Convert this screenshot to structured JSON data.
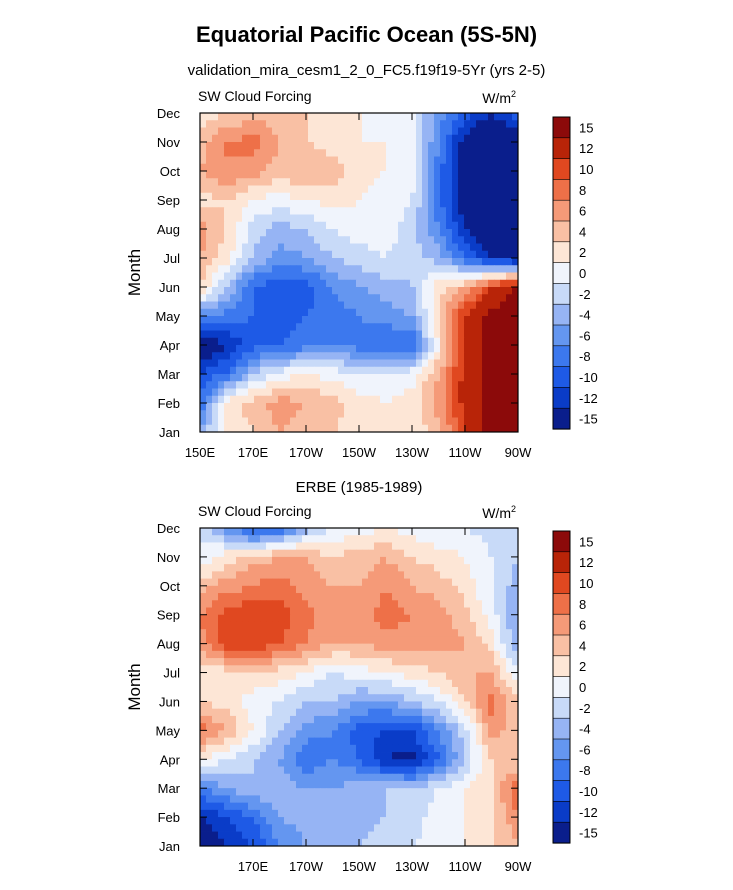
{
  "figure": {
    "title": "Equatorial Pacific Ocean (5S-5N)",
    "subtitle": "validation_mira_cesm1_2_0_FC5.f19f19-5Yr (yrs 2-5)"
  },
  "chart_data": [
    {
      "type": "heatmap",
      "panel_title": "",
      "left_label": "SW Cloud Forcing",
      "units_base": "W/m",
      "units_sup": "2",
      "ylabel": "Month",
      "xlabel": "",
      "months": [
        "Jan",
        "Feb",
        "Mar",
        "Apr",
        "May",
        "Jun",
        "Jul",
        "Aug",
        "Sep",
        "Oct",
        "Nov",
        "Dec"
      ],
      "xticks": [
        "150E",
        "170E",
        "170W",
        "150W",
        "130W",
        "110W",
        "90W"
      ],
      "x": [
        "150E",
        "160E",
        "170E",
        "180",
        "170W",
        "160W",
        "150W",
        "140W",
        "130W",
        "120W",
        "110W",
        "100W",
        "90W"
      ],
      "colorbar": [
        "15",
        "12",
        "10",
        "8",
        "6",
        "4",
        "2",
        "0",
        "-2",
        "-4",
        "-6",
        "-8",
        "-10",
        "-12",
        "-15"
      ],
      "values": [
        [
          -3,
          2,
          4,
          6,
          5,
          4,
          3,
          2,
          2,
          5,
          12,
          16,
          16
        ],
        [
          -8,
          3,
          5,
          7,
          6,
          5,
          3,
          2,
          3,
          7,
          13,
          16,
          16
        ],
        [
          -10,
          -8,
          -2,
          1,
          2,
          1,
          0,
          0,
          1,
          6,
          13,
          16,
          16
        ],
        [
          -15,
          -12,
          -9,
          -8,
          -7,
          -6,
          -7,
          -8,
          -8,
          2,
          13,
          16,
          16
        ],
        [
          -5,
          -7,
          -8,
          -9,
          -8,
          -7,
          -6,
          -5,
          -4,
          4,
          12,
          16,
          16
        ],
        [
          4,
          -2,
          -8,
          -9,
          -9,
          -6,
          -4,
          -3,
          -2,
          3,
          6,
          12,
          16
        ],
        [
          6,
          3,
          -2,
          -5,
          -4,
          -2,
          -1,
          0,
          -1,
          -3,
          -8,
          -12,
          -14
        ],
        [
          7,
          4,
          -1,
          -3,
          -2,
          0,
          1,
          1,
          -1,
          -6,
          -12,
          -16,
          -16
        ],
        [
          3,
          4,
          2,
          1,
          2,
          3,
          2,
          1,
          0,
          -7,
          -14,
          -16,
          -16
        ],
        [
          6,
          8,
          7,
          5,
          6,
          5,
          3,
          2,
          1,
          -7,
          -14,
          -16,
          -16
        ],
        [
          5,
          8,
          9,
          6,
          4,
          3,
          2,
          2,
          1,
          -6,
          -13,
          -16,
          -16
        ],
        [
          3,
          4,
          5,
          5,
          4,
          3,
          2,
          1,
          1,
          -5,
          -9,
          -12,
          -8
        ]
      ]
    },
    {
      "type": "heatmap",
      "panel_title": "ERBE (1985-1989)",
      "left_label": "SW Cloud Forcing",
      "units_base": "W/m",
      "units_sup": "2",
      "ylabel": "Month",
      "xlabel": "",
      "months": [
        "Jan",
        "Feb",
        "Mar",
        "Apr",
        "May",
        "Jun",
        "Jul",
        "Aug",
        "Sep",
        "Oct",
        "Nov",
        "Dec"
      ],
      "xticks": [
        "170E",
        "170W",
        "150W",
        "130W",
        "110W",
        "90W"
      ],
      "x": [
        "150E",
        "160E",
        "170E",
        "180",
        "170W",
        "160W",
        "150W",
        "140W",
        "130W",
        "120W",
        "110W",
        "100W",
        "90W"
      ],
      "colorbar": [
        "15",
        "12",
        "10",
        "8",
        "6",
        "4",
        "2",
        "0",
        "-2",
        "-4",
        "-6",
        "-8",
        "-10",
        "-12",
        "-15"
      ],
      "values": [
        [
          -14,
          -12,
          -10,
          -6,
          -4,
          -2,
          -2,
          -1,
          0,
          1,
          2,
          4,
          6
        ],
        [
          -12,
          -10,
          -8,
          -4,
          -3,
          -2,
          -3,
          -2,
          -1,
          1,
          2,
          3,
          8
        ],
        [
          -6,
          -4,
          -2,
          -3,
          -4,
          -4,
          -3,
          -2,
          -2,
          0,
          2,
          4,
          10
        ],
        [
          2,
          0,
          -2,
          -4,
          -8,
          -6,
          -8,
          -12,
          -13,
          -8,
          -2,
          4,
          4
        ],
        [
          9,
          6,
          2,
          -2,
          -5,
          -6,
          -9,
          -10,
          -10,
          -6,
          -1,
          7,
          5
        ],
        [
          4,
          3,
          1,
          0,
          -2,
          -2,
          -4,
          -4,
          -2,
          0,
          4,
          9,
          4
        ],
        [
          2,
          3,
          4,
          3,
          2,
          0,
          1,
          2,
          3,
          4,
          6,
          6,
          0
        ],
        [
          7,
          11,
          12,
          10,
          8,
          6,
          6,
          7,
          7,
          7,
          6,
          3,
          -4
        ],
        [
          8,
          11,
          12,
          11,
          9,
          6,
          7,
          9,
          8,
          7,
          5,
          1,
          -4
        ],
        [
          5,
          7,
          8,
          9,
          7,
          6,
          6,
          8,
          6,
          5,
          3,
          0,
          -3
        ],
        [
          0,
          3,
          5,
          6,
          6,
          4,
          5,
          6,
          4,
          3,
          2,
          0,
          -2
        ],
        [
          0,
          -5,
          -10,
          -8,
          -3,
          0,
          1,
          2,
          1,
          0,
          0,
          -1,
          -2
        ]
      ]
    }
  ],
  "palette": [
    "#0a1e8c",
    "#0a3cc8",
    "#1e5ae6",
    "#3c78ee",
    "#6496f0",
    "#96b4f4",
    "#c8daf8",
    "#f0f4fc",
    "#fde6d6",
    "#f9c0a4",
    "#f59a78",
    "#ee7048",
    "#e04820",
    "#b82408",
    "#8c0a0a"
  ],
  "palette_bounds": [
    -15,
    -12,
    -10,
    -8,
    -6,
    -4,
    -2,
    0,
    2,
    4,
    6,
    8,
    10,
    12,
    15
  ]
}
